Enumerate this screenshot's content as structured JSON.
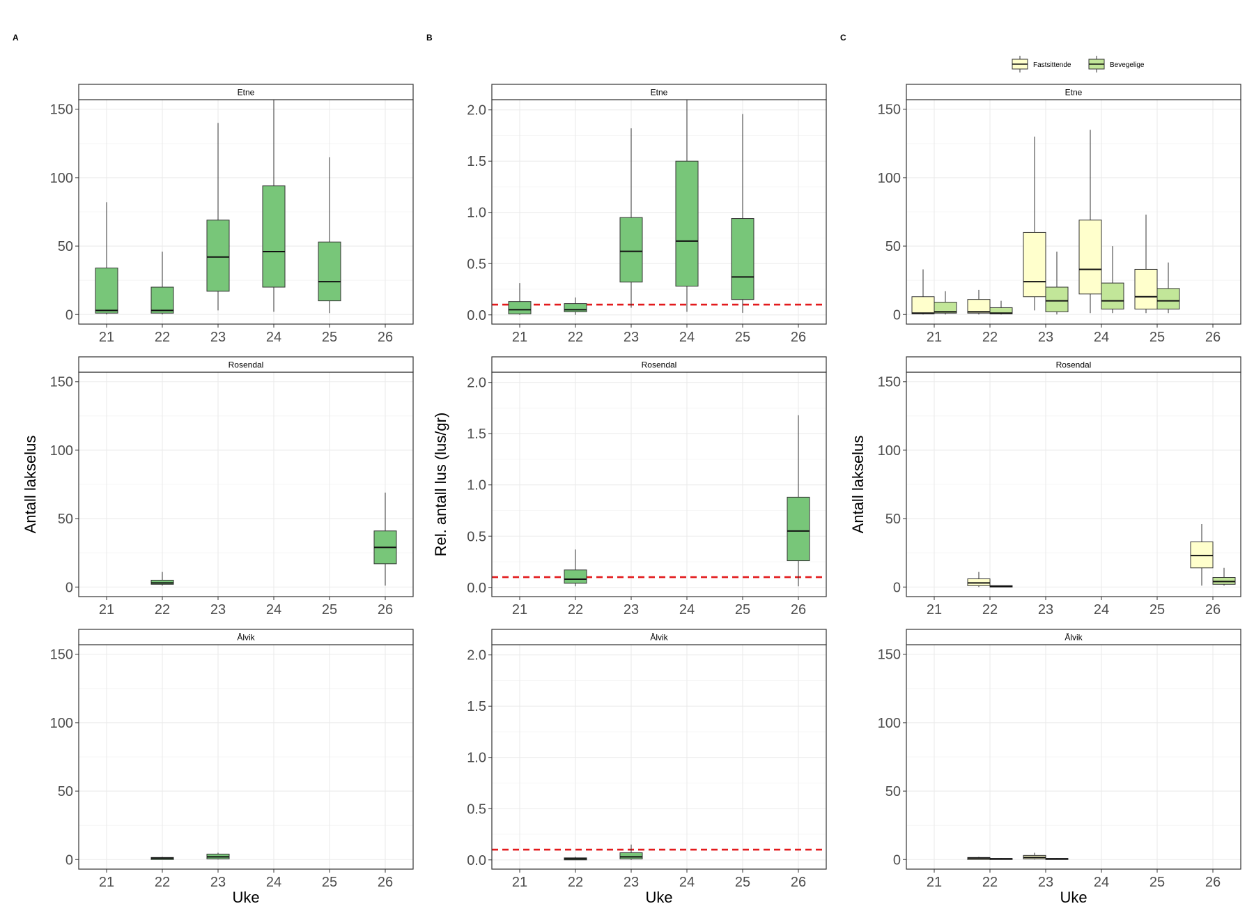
{
  "columns": [
    {
      "tag": "A",
      "ylabel": "Antall lakselus",
      "xlabel": "Uke",
      "yticks": [
        0,
        50,
        100,
        150
      ],
      "ylim": [
        -7,
        157
      ],
      "threshold": null,
      "mode": "single"
    },
    {
      "tag": "B",
      "ylabel": "Rel. antall lus (lus/gr)",
      "xlabel": "Uke",
      "yticks": [
        0.0,
        0.5,
        1.0,
        1.5,
        2.0
      ],
      "ylim": [
        -0.09,
        2.1
      ],
      "threshold": 0.1,
      "mode": "single"
    },
    {
      "tag": "C",
      "ylabel": "Antall lakselus",
      "xlabel": "Uke",
      "yticks": [
        0,
        50,
        100,
        150
      ],
      "ylim": [
        -7,
        157
      ],
      "threshold": null,
      "mode": "grouped"
    }
  ],
  "legend": {
    "items": [
      {
        "label": "Fastsittende",
        "color": "#FFFFCC"
      },
      {
        "label": "Bevegelige",
        "color": "#C2E699"
      }
    ]
  },
  "colors": {
    "single_fill": "#78C679",
    "threshold_line": "#E31A1C",
    "grid": "#EBEBEB",
    "panel_border": "#333333"
  },
  "chart_data": [
    {
      "type": "boxplot",
      "panel": "A",
      "xlabel": "Uke",
      "ylabel": "Antall lakselus",
      "x_categories": [
        "21",
        "22",
        "23",
        "24",
        "25",
        "26"
      ],
      "facets": [
        {
          "strip": "Etne",
          "boxes": [
            {
              "x": "21",
              "min": 0,
              "q1": 1,
              "median": 3,
              "q3": 34,
              "max": 82
            },
            {
              "x": "22",
              "min": 0,
              "q1": 1,
              "median": 3,
              "q3": 20,
              "max": 46
            },
            {
              "x": "23",
              "min": 3,
              "q1": 17,
              "median": 42,
              "q3": 69,
              "max": 140
            },
            {
              "x": "24",
              "min": 2,
              "q1": 20,
              "median": 46,
              "q3": 94,
              "max": 157
            },
            {
              "x": "25",
              "min": 1,
              "q1": 10,
              "median": 24,
              "q3": 53,
              "max": 115
            }
          ]
        },
        {
          "strip": "Rosendal",
          "boxes": [
            {
              "x": "22",
              "min": 1,
              "q1": 2,
              "median": 3,
              "q3": 5,
              "max": 11
            },
            {
              "x": "26",
              "min": 1,
              "q1": 17,
              "median": 29,
              "q3": 41,
              "max": 69
            }
          ]
        },
        {
          "strip": "Ålvik",
          "boxes": [
            {
              "x": "22",
              "min": 0,
              "q1": 0,
              "median": 1,
              "q3": 1.5,
              "max": 2
            },
            {
              "x": "23",
              "min": 0,
              "q1": 0.5,
              "median": 2,
              "q3": 4,
              "max": 5
            }
          ]
        }
      ]
    },
    {
      "type": "boxplot",
      "panel": "B",
      "xlabel": "Uke",
      "ylabel": "Rel. antall lus (lus/gr)",
      "x_categories": [
        "21",
        "22",
        "23",
        "24",
        "25",
        "26"
      ],
      "reference_line": 0.1,
      "facets": [
        {
          "strip": "Etne",
          "boxes": [
            {
              "x": "21",
              "min": 0,
              "q1": 0.01,
              "median": 0.05,
              "q3": 0.13,
              "max": 0.31
            },
            {
              "x": "22",
              "min": 0,
              "q1": 0.03,
              "median": 0.05,
              "q3": 0.11,
              "max": 0.17
            },
            {
              "x": "23",
              "min": 0.07,
              "q1": 0.32,
              "median": 0.62,
              "q3": 0.95,
              "max": 1.82
            },
            {
              "x": "24",
              "min": 0.03,
              "q1": 0.28,
              "median": 0.72,
              "q3": 1.5,
              "max": 2.1
            },
            {
              "x": "25",
              "min": 0.02,
              "q1": 0.15,
              "median": 0.37,
              "q3": 0.94,
              "max": 1.96
            }
          ]
        },
        {
          "strip": "Rosendal",
          "boxes": [
            {
              "x": "22",
              "min": 0.01,
              "q1": 0.04,
              "median": 0.08,
              "q3": 0.17,
              "max": 0.37
            },
            {
              "x": "26",
              "min": 0.01,
              "q1": 0.26,
              "median": 0.55,
              "q3": 0.88,
              "max": 1.68
            }
          ]
        },
        {
          "strip": "Ålvik",
          "boxes": [
            {
              "x": "22",
              "min": 0,
              "q1": 0,
              "median": 0.01,
              "q3": 0.02,
              "max": 0.03
            },
            {
              "x": "23",
              "min": 0,
              "q1": 0.01,
              "median": 0.03,
              "q3": 0.07,
              "max": 0.15
            }
          ]
        }
      ]
    },
    {
      "type": "boxplot",
      "panel": "C",
      "xlabel": "Uke",
      "ylabel": "Antall lakselus",
      "x_categories": [
        "21",
        "22",
        "23",
        "24",
        "25",
        "26"
      ],
      "groups": [
        "Fastsittende",
        "Bevegelige"
      ],
      "facets": [
        {
          "strip": "Etne",
          "boxes": [
            {
              "x": "21",
              "group": "Fastsittende",
              "min": 0,
              "q1": 0.5,
              "median": 1,
              "q3": 13,
              "max": 33
            },
            {
              "x": "21",
              "group": "Bevegelige",
              "min": 0,
              "q1": 1,
              "median": 2,
              "q3": 9,
              "max": 17
            },
            {
              "x": "22",
              "group": "Fastsittende",
              "min": 0,
              "q1": 1,
              "median": 2,
              "q3": 11,
              "max": 18
            },
            {
              "x": "22",
              "group": "Bevegelige",
              "min": 0,
              "q1": 0.5,
              "median": 1,
              "q3": 5,
              "max": 10
            },
            {
              "x": "23",
              "group": "Fastsittende",
              "min": 3,
              "q1": 13,
              "median": 24,
              "q3": 60,
              "max": 130
            },
            {
              "x": "23",
              "group": "Bevegelige",
              "min": 0,
              "q1": 2,
              "median": 10,
              "q3": 20,
              "max": 46
            },
            {
              "x": "24",
              "group": "Fastsittende",
              "min": 1,
              "q1": 15,
              "median": 33,
              "q3": 69,
              "max": 135
            },
            {
              "x": "24",
              "group": "Bevegelige",
              "min": 1,
              "q1": 4,
              "median": 10,
              "q3": 23,
              "max": 50
            },
            {
              "x": "25",
              "group": "Fastsittende",
              "min": 1,
              "q1": 4,
              "median": 13,
              "q3": 33,
              "max": 73
            },
            {
              "x": "25",
              "group": "Bevegelige",
              "min": 1,
              "q1": 4,
              "median": 10,
              "q3": 19,
              "max": 38
            }
          ]
        },
        {
          "strip": "Rosendal",
          "boxes": [
            {
              "x": "22",
              "group": "Fastsittende",
              "min": 0,
              "q1": 1,
              "median": 3,
              "q3": 6,
              "max": 11
            },
            {
              "x": "22",
              "group": "Bevegelige",
              "min": 0,
              "q1": 0,
              "median": 0.5,
              "q3": 1,
              "max": 1
            },
            {
              "x": "26",
              "group": "Fastsittende",
              "min": 1,
              "q1": 14,
              "median": 23,
              "q3": 33,
              "max": 46
            },
            {
              "x": "26",
              "group": "Bevegelige",
              "min": 1,
              "q1": 2,
              "median": 4,
              "q3": 7,
              "max": 14
            }
          ]
        },
        {
          "strip": "Ålvik",
          "boxes": [
            {
              "x": "22",
              "group": "Fastsittende",
              "min": 0,
              "q1": 0,
              "median": 1,
              "q3": 1.5,
              "max": 2
            },
            {
              "x": "22",
              "group": "Bevegelige",
              "min": 0,
              "q1": 0,
              "median": 0.5,
              "q3": 0.8,
              "max": 1
            },
            {
              "x": "23",
              "group": "Fastsittende",
              "min": 0,
              "q1": 0.5,
              "median": 1.5,
              "q3": 3,
              "max": 5
            },
            {
              "x": "23",
              "group": "Bevegelige",
              "min": 0,
              "q1": 0,
              "median": 0.5,
              "q3": 0.8,
              "max": 1
            }
          ]
        }
      ]
    }
  ]
}
